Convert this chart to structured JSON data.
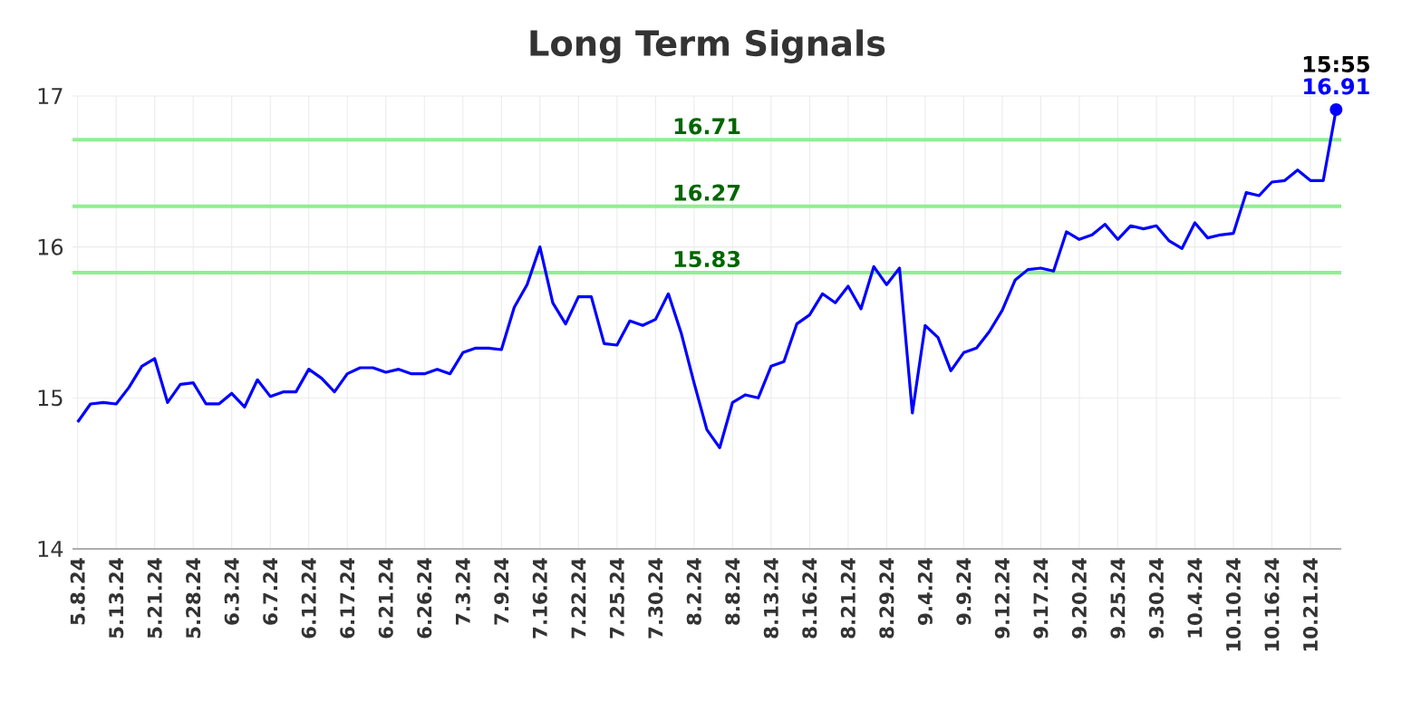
{
  "chart_data": {
    "type": "line",
    "title": "Long Term Signals",
    "categories": [
      "5.8.24",
      null,
      null,
      "5.13.24",
      null,
      null,
      "5.21.24",
      null,
      null,
      "5.28.24",
      null,
      null,
      "6.3.24",
      null,
      null,
      "6.7.24",
      null,
      null,
      "6.12.24",
      null,
      null,
      "6.17.24",
      null,
      null,
      "6.21.24",
      null,
      null,
      "6.26.24",
      null,
      null,
      "7.3.24",
      null,
      null,
      "7.9.24",
      null,
      null,
      "7.16.24",
      null,
      null,
      "7.22.24",
      null,
      null,
      "7.25.24",
      null,
      null,
      "7.30.24",
      null,
      null,
      "8.2.24",
      null,
      null,
      "8.8.24",
      null,
      null,
      "8.13.24",
      null,
      null,
      "8.16.24",
      null,
      null,
      "8.21.24",
      null,
      null,
      "8.29.24",
      null,
      null,
      "9.4.24",
      null,
      null,
      "9.9.24",
      null,
      null,
      "9.12.24",
      null,
      null,
      "9.17.24",
      null,
      null,
      "9.20.24",
      null,
      null,
      "9.25.24",
      null,
      null,
      "9.30.24",
      null,
      null,
      "10.4.24",
      null,
      null,
      "10.10.24",
      null,
      null,
      "10.16.24",
      null,
      null,
      "10.21.24",
      null,
      null
    ],
    "series": [
      {
        "color": "#0000ff",
        "values": [
          14.84,
          14.96,
          14.97,
          14.96,
          15.07,
          15.21,
          15.26,
          14.97,
          15.09,
          15.1,
          14.96,
          14.96,
          15.03,
          14.94,
          15.12,
          15.01,
          15.04,
          15.04,
          15.19,
          15.13,
          15.04,
          15.16,
          15.2,
          15.2,
          15.17,
          15.19,
          15.16,
          15.16,
          15.19,
          15.16,
          15.3,
          15.33,
          15.33,
          15.32,
          15.6,
          15.75,
          16.0,
          15.63,
          15.49,
          15.67,
          15.67,
          15.36,
          15.35,
          15.51,
          15.48,
          15.52,
          15.69,
          15.43,
          15.1,
          14.79,
          14.67,
          14.97,
          15.02,
          15.0,
          15.21,
          15.24,
          15.49,
          15.55,
          15.69,
          15.63,
          15.74,
          15.59,
          15.87,
          15.75,
          15.86,
          14.9,
          15.48,
          15.4,
          15.18,
          15.3,
          15.33,
          15.44,
          15.58,
          15.78,
          15.85,
          15.86,
          15.84,
          16.1,
          16.05,
          16.08,
          16.15,
          16.05,
          16.14,
          16.12,
          16.14,
          16.04,
          15.99,
          16.16,
          16.06,
          16.08,
          16.09,
          16.36,
          16.34,
          16.43,
          16.44,
          16.51,
          16.44,
          16.44,
          16.91
        ]
      }
    ],
    "ylim": [
      14,
      17
    ],
    "yticks": [
      14,
      15,
      16,
      17
    ],
    "grid": true,
    "marker": "none",
    "line_style": "solid",
    "ref_lines": [
      {
        "axis": "y",
        "value": 16.71,
        "label": "16.71",
        "color": "#90ee90"
      },
      {
        "axis": "y",
        "value": 16.27,
        "label": "16.27",
        "color": "#90ee90"
      },
      {
        "axis": "y",
        "value": 15.83,
        "label": "15.83",
        "color": "#90ee90"
      }
    ],
    "annotations": [
      "15:55",
      {
        "text": "16.91",
        "y": 16.91
      }
    ]
  }
}
